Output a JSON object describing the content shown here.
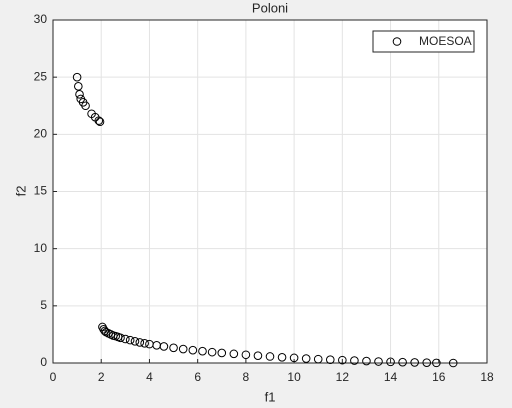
{
  "chart_data": {
    "type": "scatter",
    "title": "Poloni",
    "x_label": "f1",
    "y_label": "f2",
    "xlim": [
      0,
      18
    ],
    "xticks": [
      0,
      2,
      4,
      6,
      8,
      10,
      12,
      14,
      16,
      18
    ],
    "ylim": [
      0,
      30
    ],
    "yticks": [
      0,
      5,
      10,
      15,
      20,
      25,
      30
    ],
    "grid": true,
    "legend_position": "northeast",
    "series": [
      {
        "name": "MOESOA",
        "color": "#000000",
        "x": [
          1.0,
          1.05,
          1.1,
          1.15,
          1.25,
          1.35,
          1.6,
          1.75,
          1.9,
          1.95,
          2.05,
          2.1,
          2.15,
          2.2,
          2.3,
          2.4,
          2.5,
          2.6,
          2.7,
          2.8,
          3.0,
          3.2,
          3.4,
          3.6,
          3.8,
          4.0,
          4.3,
          4.6,
          5.0,
          5.4,
          5.8,
          6.2,
          6.6,
          7.0,
          7.5,
          8.0,
          8.5,
          9.0,
          9.5,
          10.0,
          10.5,
          11.0,
          11.5,
          12.0,
          12.5,
          13.0,
          13.5,
          14.0,
          14.5,
          15.0,
          15.5,
          15.9,
          16.6
        ],
        "y": [
          25.0,
          24.2,
          23.5,
          23.1,
          22.8,
          22.5,
          21.8,
          21.5,
          21.2,
          21.1,
          3.15,
          2.95,
          2.8,
          2.7,
          2.6,
          2.5,
          2.4,
          2.35,
          2.28,
          2.2,
          2.1,
          2.0,
          1.9,
          1.8,
          1.72,
          1.65,
          1.55,
          1.45,
          1.33,
          1.22,
          1.12,
          1.03,
          0.95,
          0.88,
          0.8,
          0.72,
          0.64,
          0.57,
          0.5,
          0.45,
          0.39,
          0.34,
          0.29,
          0.25,
          0.21,
          0.17,
          0.13,
          0.1,
          0.07,
          0.05,
          0.03,
          0.01,
          0.0
        ]
      }
    ]
  }
}
